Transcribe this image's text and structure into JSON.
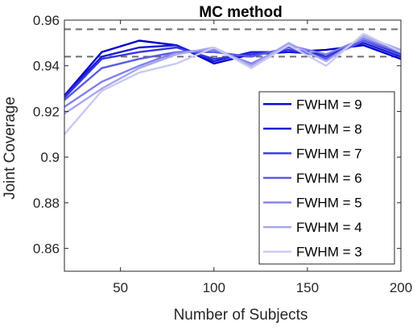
{
  "chart_data": {
    "type": "line",
    "title": "MC method",
    "xlabel": "Number of Subjects",
    "ylabel": "Joint Coverage",
    "xlim": [
      20,
      200
    ],
    "ylim": [
      0.85,
      0.96
    ],
    "xticks": [
      50,
      100,
      150,
      200
    ],
    "xtick_labels": [
      "50",
      "100",
      "150",
      "200"
    ],
    "yticks": [
      0.86,
      0.88,
      0.9,
      0.92,
      0.94,
      0.96
    ],
    "ytick_labels": [
      "0.86",
      "0.88",
      "0.9",
      "0.92",
      "0.94",
      "0.96"
    ],
    "reference_lines": [
      0.956,
      0.944
    ],
    "legend_position": "bottom-right",
    "x": [
      20,
      40,
      60,
      80,
      100,
      120,
      140,
      160,
      180,
      200
    ],
    "series": [
      {
        "name": "FWHM = 9",
        "color": "#0000cc",
        "values": [
          0.927,
          0.946,
          0.951,
          0.949,
          0.941,
          0.945,
          0.946,
          0.947,
          0.949,
          0.943
        ]
      },
      {
        "name": "FWHM = 8",
        "color": "#1a1ad6",
        "values": [
          0.927,
          0.944,
          0.948,
          0.949,
          0.942,
          0.946,
          0.946,
          0.945,
          0.95,
          0.944
        ]
      },
      {
        "name": "FWHM = 7",
        "color": "#3636e0",
        "values": [
          0.926,
          0.943,
          0.946,
          0.948,
          0.943,
          0.945,
          0.947,
          0.944,
          0.951,
          0.945
        ]
      },
      {
        "name": "FWHM = 6",
        "color": "#5a5ae6",
        "values": [
          0.925,
          0.939,
          0.943,
          0.946,
          0.946,
          0.944,
          0.948,
          0.943,
          0.951,
          0.946
        ]
      },
      {
        "name": "FWHM = 5",
        "color": "#8080ea",
        "values": [
          0.922,
          0.933,
          0.94,
          0.946,
          0.947,
          0.941,
          0.949,
          0.945,
          0.952,
          0.946
        ]
      },
      {
        "name": "FWHM = 4",
        "color": "#a6a6ef",
        "values": [
          0.919,
          0.93,
          0.939,
          0.945,
          0.948,
          0.94,
          0.95,
          0.942,
          0.953,
          0.947
        ]
      },
      {
        "name": "FWHM = 3",
        "color": "#c9c9f5",
        "values": [
          0.91,
          0.929,
          0.937,
          0.941,
          0.948,
          0.939,
          0.949,
          0.94,
          0.954,
          0.946
        ]
      }
    ]
  }
}
